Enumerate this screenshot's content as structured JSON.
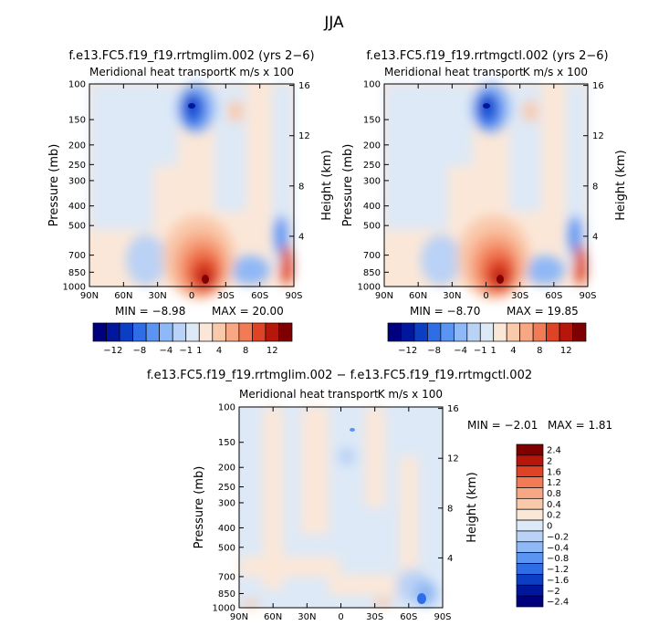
{
  "figure": {
    "title": "JJA",
    "difference_title": "f.e13.FC5.f19_f19.rrtmglim.002 − f.e13.FC5.f19_f19.rrtmgctl.002"
  },
  "colors": {
    "diverging_scale": [
      "#00007f",
      "#00169d",
      "#0b3ec3",
      "#2f6de6",
      "#5a95f3",
      "#8fb8f6",
      "#bad2f5",
      "#dde9f7",
      "#fbe7d8",
      "#f9c9ab",
      "#f7a784",
      "#f17b55",
      "#de4326",
      "#b7160b",
      "#7f0000"
    ],
    "difference_scale": [
      "#00007f",
      "#00169d",
      "#0b3ec3",
      "#2f6de6",
      "#5a95f3",
      "#8fb8f6",
      "#bad2f5",
      "#dde9f7",
      "#fbe7d8",
      "#f9c9ab",
      "#f7a784",
      "#f17b55",
      "#de4326",
      "#b7160b",
      "#7f0000"
    ]
  },
  "chart_data": [
    {
      "type": "heatmap",
      "title": "f.e13.FC5.f19_f19.rrtmglim.002 (yrs 2−6)",
      "subtitle_left": "Meridional heat transport",
      "subtitle_right": "K m/s x 100",
      "ylabel": "Pressure (mb)",
      "y2label": "Height (km)",
      "x_ticks": [
        "90N",
        "60N",
        "30N",
        "0",
        "30S",
        "60S",
        "90S"
      ],
      "y_ticks": [
        "100",
        "150",
        "200",
        "250",
        "300",
        "400",
        "500",
        "700",
        "850",
        "1000"
      ],
      "y2_ticks": [
        "16",
        "12",
        "8",
        "4"
      ],
      "min_label": "MIN = −8.98",
      "max_label": "MAX = 20.00",
      "min": -8.98,
      "max": 20.0,
      "colorbar_ticks": [
        "−12",
        "−8",
        "−4",
        "−1",
        "1",
        "4",
        "8",
        "12"
      ]
    },
    {
      "type": "heatmap",
      "title": "f.e13.FC5.f19_f19.rrtmgctl.002 (yrs 2−6)",
      "subtitle_left": "Meridional heat transport",
      "subtitle_right": "K m/s x 100",
      "ylabel": "Pressure (mb)",
      "y2label": "Height (km)",
      "x_ticks": [
        "90N",
        "60N",
        "30N",
        "0",
        "30S",
        "60S",
        "90S"
      ],
      "y_ticks": [
        "100",
        "150",
        "200",
        "250",
        "300",
        "400",
        "500",
        "700",
        "850",
        "1000"
      ],
      "y2_ticks": [
        "16",
        "12",
        "8",
        "4"
      ],
      "min_label": "MIN = −8.70",
      "max_label": "MAX = 19.85",
      "min": -8.7,
      "max": 19.85,
      "colorbar_ticks": [
        "−12",
        "−8",
        "−4",
        "−1",
        "1",
        "4",
        "8",
        "12"
      ]
    },
    {
      "type": "heatmap",
      "subtitle_left": "Meridional heat transport",
      "subtitle_right": "K m/s x 100",
      "ylabel": "Pressure (mb)",
      "y2label": "Height (km)",
      "x_ticks": [
        "90N",
        "60N",
        "30N",
        "0",
        "30S",
        "60S",
        "90S"
      ],
      "y_ticks": [
        "100",
        "150",
        "200",
        "250",
        "300",
        "400",
        "500",
        "700",
        "850",
        "1000"
      ],
      "y2_ticks": [
        "16",
        "12",
        "8",
        "4"
      ],
      "min_label": "MIN = −2.01",
      "max_label": "MAX = 1.81",
      "min": -2.01,
      "max": 1.81,
      "colorbar_ticks": [
        "2.4",
        "2",
        "1.6",
        "1.2",
        "0.8",
        "0.4",
        "0.2",
        "0",
        "−0.2",
        "−0.4",
        "−0.8",
        "−1.2",
        "−1.6",
        "−2",
        "−2.4"
      ]
    }
  ]
}
